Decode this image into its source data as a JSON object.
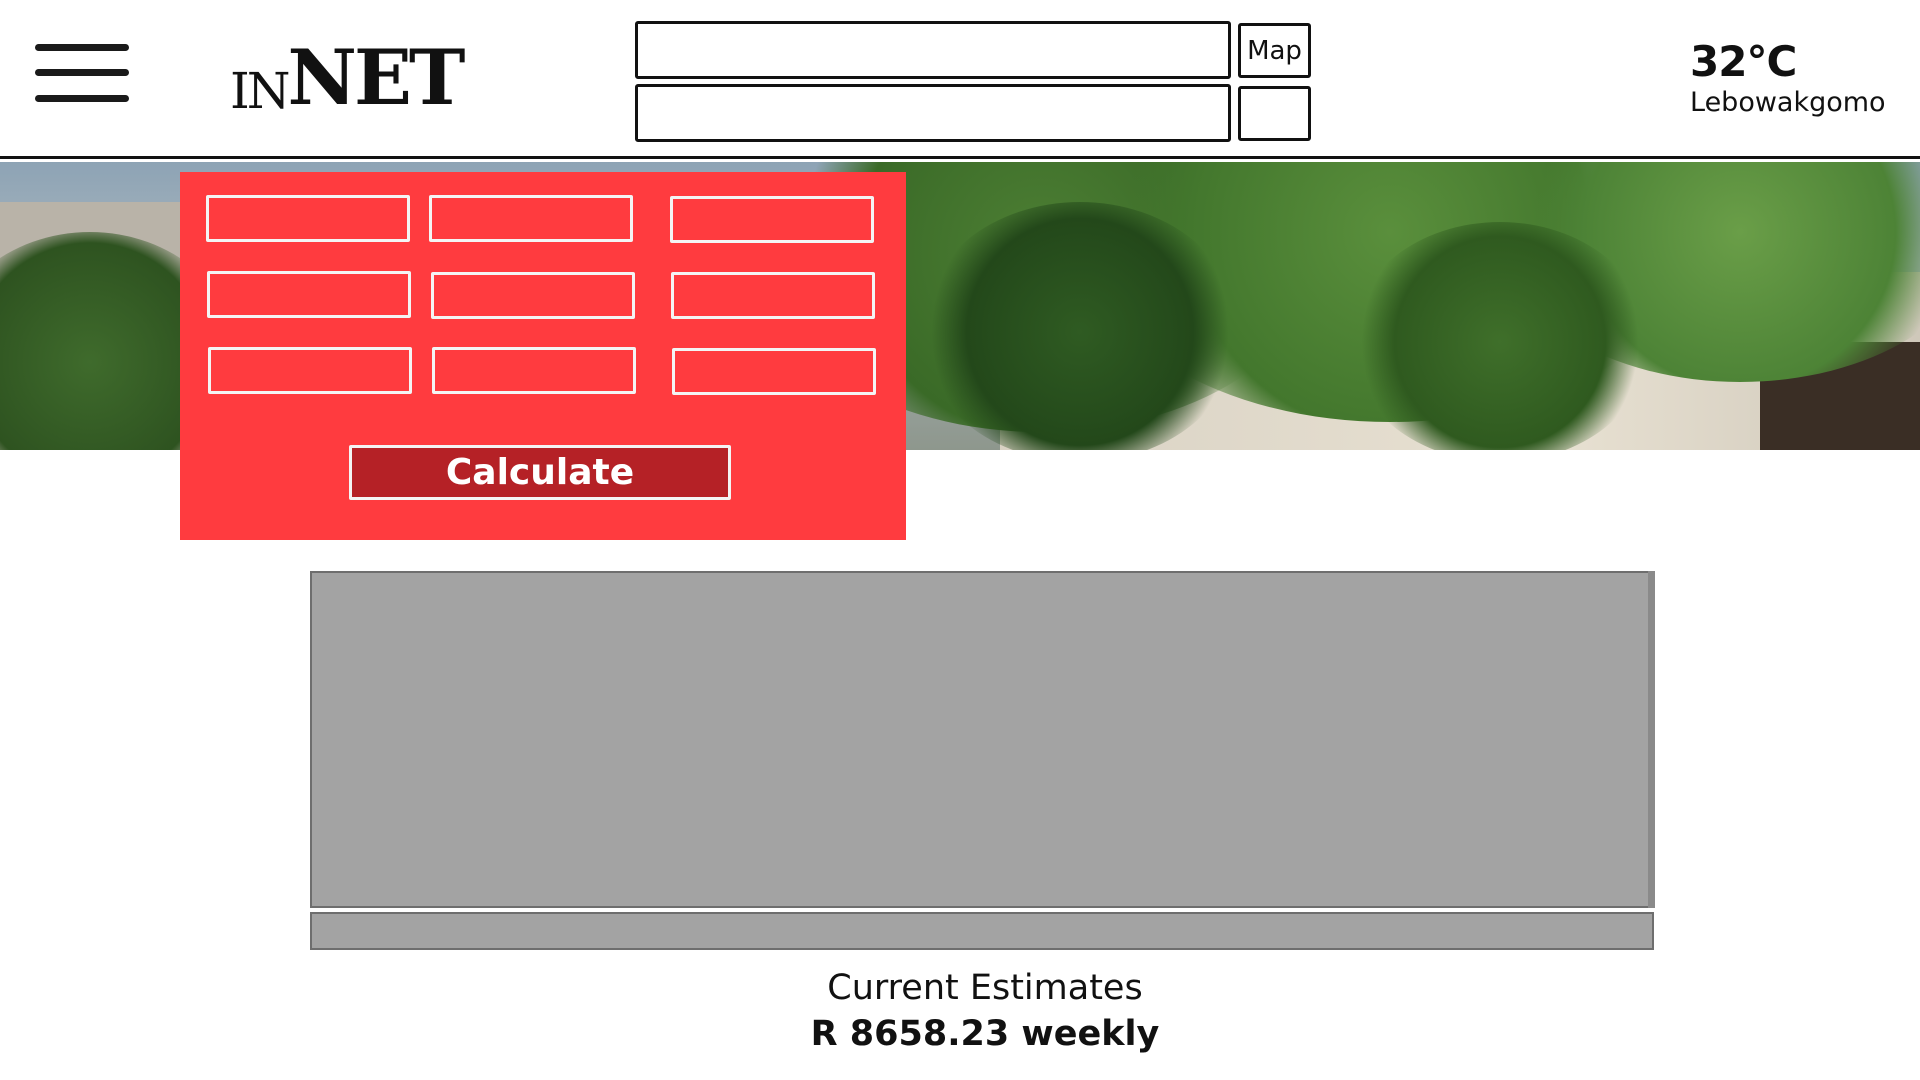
{
  "header": {
    "logo_small": "IN",
    "logo_big": "NET",
    "search_fields": [
      {
        "value": "",
        "placeholder": ""
      },
      {
        "value": "",
        "placeholder": ""
      }
    ],
    "map_button_label": "Map",
    "secondary_button_label": "",
    "weather": {
      "temperature": "32°C",
      "city": "Lebowakgomo"
    }
  },
  "banner": {
    "icon": "tree-photo"
  },
  "calculator": {
    "fields": [
      "",
      "",
      "",
      "",
      "",
      "",
      "",
      "",
      ""
    ],
    "calculate_label": "Calculate",
    "colors": {
      "panel": "#ff3b3f",
      "button": "#b52126",
      "border": "#f4f4f4"
    }
  },
  "content": {
    "box_color": "#a3a3a3"
  },
  "estimates": {
    "label": "Current Estimates",
    "value": "R 8658.23 weekly"
  }
}
